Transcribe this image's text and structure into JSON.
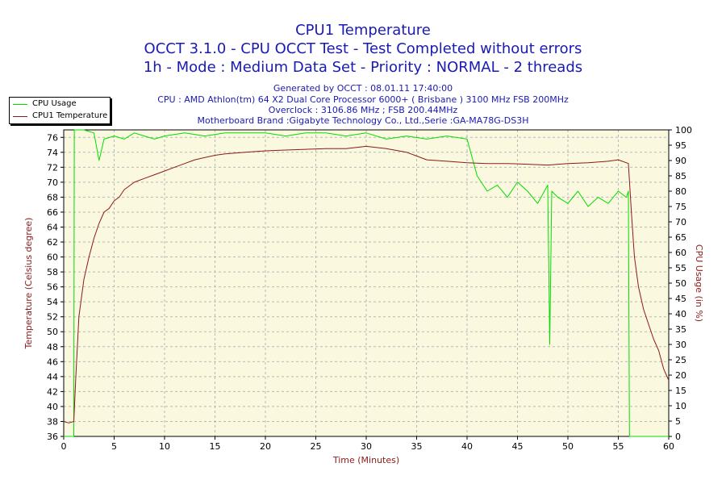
{
  "chart_data": {
    "type": "line",
    "title": "CPU1 Temperature",
    "subtitle_lines": [
      "OCCT 3.1.0 - CPU OCCT Test - Test Completed without errors",
      "1h - Mode : Medium Data Set - Priority : NORMAL - 2 threads"
    ],
    "info_lines": [
      "Generated by OCCT : 08.01.11 17:40:00",
      "CPU : AMD Athlon(tm) 64 X2 Dual Core Processor 6000+ ( Brisbane ) 3100 MHz FSB 200MHz",
      "Overclock : 3106.86 MHz ; FSB 200.44MHz",
      "Motherboard Brand :Gigabyte Technology Co., Ltd.,Serie :GA-MA78G-DS3H"
    ],
    "xlabel": "Time (Minutes)",
    "ylabel": "Temperature (Celsius degree)",
    "y2label": "CPU Usage (in %)",
    "xlim": [
      0,
      60
    ],
    "ylim": [
      36,
      77
    ],
    "y2lim": [
      0,
      100
    ],
    "x_ticks": [
      0,
      5,
      10,
      15,
      20,
      25,
      30,
      35,
      40,
      45,
      50,
      55,
      60
    ],
    "y_ticks": [
      36,
      38,
      40,
      42,
      44,
      46,
      48,
      50,
      52,
      54,
      56,
      58,
      60,
      62,
      64,
      66,
      68,
      70,
      72,
      74,
      76
    ],
    "y2_ticks": [
      0,
      5,
      10,
      15,
      20,
      25,
      30,
      35,
      40,
      45,
      50,
      55,
      60,
      65,
      70,
      75,
      80,
      85,
      90,
      95,
      100
    ],
    "grid": true,
    "legend_position": "top-left",
    "colors": {
      "cpu_usage": "#00dd00",
      "temperature": "#8b1a1a",
      "plot_bg": "#fbf8e0",
      "title": "#1a1ab4",
      "axis_label": "#8b1a1a"
    },
    "series": [
      {
        "name": "CPU1 Temperature",
        "axis": "left",
        "x": [
          0,
          0.5,
          1.0,
          1.2,
          1.5,
          2,
          2.5,
          3,
          3.5,
          4,
          4.5,
          5,
          5.5,
          6,
          6.5,
          7,
          8,
          9,
          10,
          11,
          12,
          13,
          14,
          15,
          16,
          18,
          20,
          22,
          24,
          26,
          28,
          30,
          32,
          34,
          35,
          36,
          38,
          40,
          42,
          44,
          46,
          48,
          50,
          52,
          54,
          55,
          56,
          56.3,
          56.6,
          57,
          57.5,
          58,
          58.5,
          59,
          59.5,
          60
        ],
        "values": [
          38,
          37.8,
          38,
          44,
          52,
          57,
          60,
          62.5,
          64.5,
          66,
          66.5,
          67.5,
          68,
          69,
          69.5,
          70,
          70.5,
          71,
          71.5,
          72,
          72.5,
          73,
          73.3,
          73.6,
          73.8,
          74,
          74.2,
          74.3,
          74.4,
          74.5,
          74.5,
          74.8,
          74.5,
          74,
          73.5,
          73,
          72.8,
          72.6,
          72.5,
          72.5,
          72.4,
          72.3,
          72.5,
          72.6,
          72.8,
          73,
          72.5,
          66,
          60,
          56,
          53,
          51,
          49,
          47.5,
          45,
          43.5
        ]
      },
      {
        "name": "CPU Usage",
        "axis": "right",
        "x": [
          0,
          0.9,
          1.0,
          1.05,
          1.2,
          2,
          3,
          3.5,
          4,
          5,
          6,
          7,
          8,
          9,
          10,
          12,
          14,
          16,
          18,
          20,
          22,
          24,
          26,
          28,
          30,
          32,
          34,
          36,
          38,
          40,
          41,
          42,
          43,
          44,
          45,
          46,
          47,
          48,
          48.2,
          48.4,
          49,
          50,
          51,
          52,
          53,
          54,
          55,
          55.8,
          56.0,
          56.1,
          56.3,
          60
        ],
        "values": [
          0,
          0,
          0,
          100,
          100,
          100,
          99,
          90,
          97,
          98,
          97,
          99,
          98,
          97,
          98,
          99,
          98,
          99,
          99,
          99,
          98,
          99,
          99,
          98,
          99,
          97,
          98,
          97,
          98,
          97,
          85,
          80,
          82,
          78,
          83,
          80,
          76,
          82,
          30,
          80,
          78,
          76,
          80,
          75,
          78,
          76,
          80,
          78,
          80,
          0,
          0,
          0
        ]
      }
    ]
  }
}
